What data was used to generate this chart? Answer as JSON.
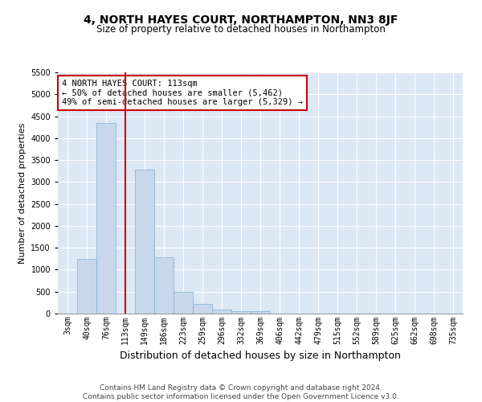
{
  "title": "4, NORTH HAYES COURT, NORTHAMPTON, NN3 8JF",
  "subtitle": "Size of property relative to detached houses in Northampton",
  "xlabel": "Distribution of detached houses by size in Northampton",
  "ylabel": "Number of detached properties",
  "footer_line1": "Contains HM Land Registry data © Crown copyright and database right 2024.",
  "footer_line2": "Contains public sector information licensed under the Open Government Licence v3.0.",
  "annotation_line1": "4 NORTH HAYES COURT: 113sqm",
  "annotation_line2": "← 50% of detached houses are smaller (5,462)",
  "annotation_line3": "49% of semi-detached houses are larger (5,329) →",
  "categories": [
    "3sqm",
    "40sqm",
    "76sqm",
    "113sqm",
    "149sqm",
    "186sqm",
    "223sqm",
    "259sqm",
    "296sqm",
    "332sqm",
    "369sqm",
    "406sqm",
    "442sqm",
    "479sqm",
    "515sqm",
    "552sqm",
    "589sqm",
    "625sqm",
    "662sqm",
    "698sqm",
    "735sqm"
  ],
  "values": [
    0,
    1250,
    4350,
    0,
    3280,
    1280,
    490,
    225,
    90,
    60,
    55,
    0,
    0,
    0,
    0,
    0,
    0,
    0,
    0,
    0,
    0
  ],
  "vline_index": 3,
  "ylim": [
    0,
    5500
  ],
  "yticks": [
    0,
    500,
    1000,
    1500,
    2000,
    2500,
    3000,
    3500,
    4000,
    4500,
    5000,
    5500
  ],
  "bar_color": "#c8d8ec",
  "bar_edge_color": "#7aafd4",
  "vline_color": "#cc0000",
  "ann_box_color": "#cc0000",
  "bg_color": "#dde8f5",
  "grid_color": "#ffffff",
  "title_fontsize": 10,
  "subtitle_fontsize": 8.5,
  "ylabel_fontsize": 8,
  "xlabel_fontsize": 9,
  "tick_fontsize": 7,
  "ann_fontsize": 7.5,
  "footer_fontsize": 6.5
}
